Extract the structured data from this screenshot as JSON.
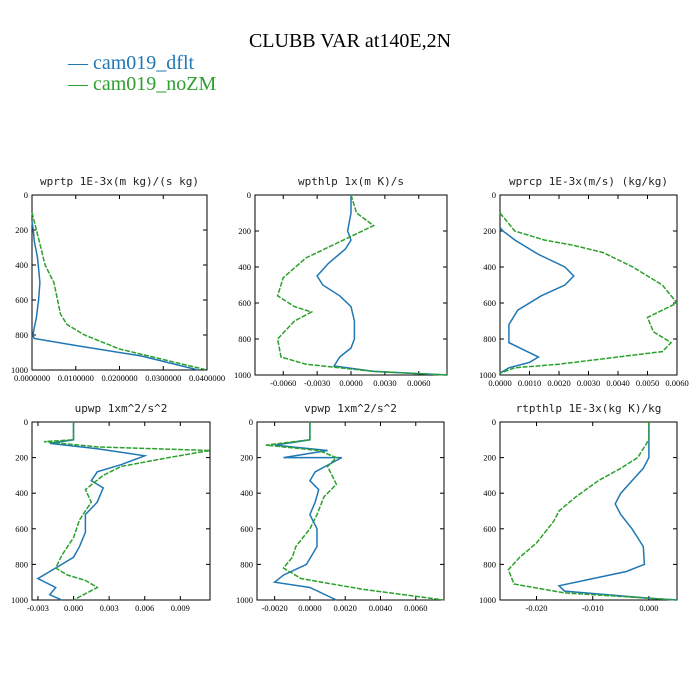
{
  "figure": {
    "title": "CLUBB VAR at140E,2N",
    "legend": [
      {
        "label": "— cam019_dflt",
        "color": "#1f77b4"
      },
      {
        "label": "— cam019_noZM",
        "color": "#2ca02c"
      }
    ]
  },
  "chart_data": [
    {
      "type": "line",
      "title": "wprtp  1E-3x(m kg)/(s kg)",
      "xlim": [
        0,
        0.04
      ],
      "ylim": [
        1000,
        0
      ],
      "xticks": [
        0,
        0.01,
        0.02,
        0.03,
        0.04
      ],
      "xtick_labels": [
        "0.0000000",
        "0.0100000",
        "0.0200000",
        "0.0300000",
        "0.0400000"
      ],
      "yticks": [
        0,
        200,
        400,
        600,
        800,
        1000
      ],
      "ytick_labels": [
        "0",
        "200",
        "400",
        "600",
        "800",
        "1000"
      ],
      "series": [
        {
          "name": "cam019_dflt",
          "color": "#1f77b4",
          "x": [
            0.0,
            0.0003,
            0.0005,
            0.0008,
            0.0012,
            0.0015,
            0.0018,
            0.0015,
            0.001,
            0.0005,
            0.0002,
            0.0005,
            0.01,
            0.025,
            0.038
          ],
          "y": [
            150,
            200,
            260,
            300,
            350,
            420,
            500,
            600,
            700,
            760,
            800,
            820,
            860,
            920,
            1000
          ]
        },
        {
          "name": "cam019_noZM",
          "color": "#2ca02c",
          "x": [
            0.0,
            0.001,
            0.002,
            0.003,
            0.004,
            0.005,
            0.0055,
            0.006,
            0.0065,
            0.008,
            0.012,
            0.02,
            0.03,
            0.04
          ],
          "y": [
            100,
            200,
            300,
            400,
            450,
            500,
            560,
            620,
            680,
            740,
            800,
            880,
            940,
            1000
          ]
        }
      ]
    },
    {
      "type": "line",
      "title": "wpthlp  1x(m K)/s",
      "xlim": [
        -0.0085,
        0.0085
      ],
      "ylim": [
        1000,
        0
      ],
      "xticks": [
        -0.006,
        -0.003,
        0.0,
        0.003,
        0.006
      ],
      "xtick_labels": [
        "-0.0060",
        "-0.0030",
        "0.0000",
        "0.0030",
        "0.0060"
      ],
      "yticks": [
        0,
        200,
        400,
        600,
        800,
        1000
      ],
      "ytick_labels": [
        "0",
        "200",
        "400",
        "600",
        "800",
        "1000"
      ],
      "series": [
        {
          "name": "cam019_dflt",
          "color": "#1f77b4",
          "x": [
            0.0,
            0.0,
            -0.0003,
            0.0,
            -0.0005,
            -0.002,
            -0.003,
            -0.0025,
            -0.001,
            0.0,
            0.0003,
            0.0003,
            0.0,
            -0.001,
            -0.0015,
            0.002,
            0.0085
          ],
          "y": [
            0,
            100,
            200,
            250,
            300,
            380,
            450,
            500,
            560,
            620,
            700,
            800,
            850,
            900,
            950,
            980,
            1000
          ]
        },
        {
          "name": "cam019_noZM",
          "color": "#2ca02c",
          "x": [
            0.0,
            0.0005,
            0.002,
            -0.001,
            -0.004,
            -0.006,
            -0.0065,
            -0.005,
            -0.0035,
            -0.005,
            -0.0065,
            -0.0062,
            -0.004,
            0.002,
            0.0085
          ],
          "y": [
            0,
            100,
            170,
            260,
            350,
            460,
            560,
            620,
            650,
            700,
            800,
            900,
            940,
            980,
            1000
          ]
        }
      ]
    },
    {
      "type": "line",
      "title": "wprcp  1E-3x(m/s) (kg/kg)",
      "xlim": [
        0,
        0.006
      ],
      "ylim": [
        1000,
        0
      ],
      "xticks": [
        0,
        0.001,
        0.002,
        0.003,
        0.004,
        0.005,
        0.006
      ],
      "xtick_labels": [
        "0.0000",
        "0.0010",
        "0.0020",
        "0.0030",
        "0.0040",
        "0.0050",
        "0.0060"
      ],
      "yticks": [
        0,
        200,
        400,
        600,
        800,
        1000
      ],
      "ytick_labels": [
        "0",
        "200",
        "400",
        "600",
        "800",
        "1000"
      ],
      "series": [
        {
          "name": "cam019_dflt",
          "color": "#1f77b4",
          "x": [
            0.0,
            0.0001,
            0.0005,
            0.0013,
            0.0022,
            0.0025,
            0.0022,
            0.0014,
            0.0006,
            0.0003,
            0.0003,
            0.0008,
            0.0013,
            0.001,
            0.0003,
            0.0
          ],
          "y": [
            180,
            200,
            250,
            330,
            400,
            450,
            500,
            560,
            640,
            720,
            820,
            860,
            900,
            930,
            960,
            990
          ]
        },
        {
          "name": "cam019_noZM",
          "color": "#2ca02c",
          "x": [
            0.0,
            0.0005,
            0.0015,
            0.0025,
            0.0035,
            0.0045,
            0.0055,
            0.006,
            0.0055,
            0.005,
            0.0052,
            0.0058,
            0.0055,
            0.004,
            0.002,
            0.0005,
            0.0
          ],
          "y": [
            100,
            200,
            250,
            280,
            320,
            400,
            500,
            600,
            640,
            680,
            760,
            820,
            870,
            900,
            940,
            960,
            990
          ]
        }
      ]
    },
    {
      "type": "line",
      "title": "upwp  1xm^2/s^2",
      "xlim": [
        -0.0035,
        0.0115
      ],
      "ylim": [
        1000,
        0
      ],
      "xticks": [
        -0.003,
        0.0,
        0.003,
        0.006,
        0.009
      ],
      "xtick_labels": [
        "-0.003",
        "0.000",
        "0.003",
        "0.006",
        "0.009"
      ],
      "yticks": [
        0,
        200,
        400,
        600,
        800,
        1000
      ],
      "ytick_labels": [
        "0",
        "200",
        "400",
        "600",
        "800",
        "1000"
      ],
      "series": [
        {
          "name": "cam019_dflt",
          "color": "#1f77b4",
          "x": [
            0.0,
            0.0,
            -0.002,
            0.002,
            0.006,
            0.004,
            0.002,
            0.0015,
            0.0025,
            0.002,
            0.001,
            0.001,
            0.0005,
            0.0,
            -0.0015,
            -0.003,
            -0.0015,
            -0.002,
            -0.001
          ],
          "y": [
            0,
            100,
            120,
            150,
            190,
            240,
            280,
            330,
            370,
            450,
            520,
            620,
            700,
            760,
            820,
            880,
            930,
            970,
            1000
          ]
        },
        {
          "name": "cam019_noZM",
          "color": "#2ca02c",
          "x": [
            0.0,
            0.0,
            -0.0025,
            0.002,
            0.0115,
            0.008,
            0.004,
            0.0025,
            0.001,
            0.0015,
            0.0005,
            0.0,
            -0.001,
            -0.0015,
            -0.0005,
            0.001,
            0.002,
            0.0
          ],
          "y": [
            0,
            100,
            110,
            140,
            160,
            200,
            250,
            300,
            380,
            450,
            550,
            650,
            750,
            820,
            860,
            890,
            930,
            1000
          ]
        }
      ]
    },
    {
      "type": "line",
      "title": "vpwp  1xm^2/s^2",
      "xlim": [
        -0.003,
        0.0076
      ],
      "ylim": [
        1000,
        0
      ],
      "xticks": [
        -0.002,
        0.0,
        0.002,
        0.004,
        0.006
      ],
      "xtick_labels": [
        "-0.0020",
        "0.0000",
        "0.0020",
        "0.0040",
        "0.0060"
      ],
      "yticks": [
        0,
        200,
        400,
        600,
        800,
        1000
      ],
      "ytick_labels": [
        "0",
        "200",
        "400",
        "600",
        "800",
        "1000"
      ],
      "series": [
        {
          "name": "cam019_dflt",
          "color": "#1f77b4",
          "x": [
            0.0,
            0.0,
            -0.002,
            0.001,
            -0.0015,
            0.0018,
            0.0003,
            0.0,
            0.0005,
            0.0003,
            0.0,
            0.0004,
            0.0004,
            -0.0002,
            -0.0015,
            -0.002,
            0.0,
            0.0015
          ],
          "y": [
            0,
            100,
            130,
            160,
            200,
            200,
            280,
            330,
            380,
            450,
            520,
            600,
            700,
            800,
            860,
            900,
            930,
            1000
          ]
        },
        {
          "name": "cam019_noZM",
          "color": "#2ca02c",
          "x": [
            0.0,
            0.0,
            -0.0025,
            0.0005,
            0.0015,
            0.001,
            0.0015,
            0.0008,
            0.0004,
            0.0,
            -0.0008,
            -0.001,
            -0.0015,
            -0.0005,
            0.003,
            0.0076
          ],
          "y": [
            0,
            100,
            130,
            160,
            200,
            250,
            350,
            420,
            520,
            600,
            700,
            760,
            820,
            880,
            940,
            1000
          ]
        }
      ]
    },
    {
      "type": "line",
      "title": "rtpthlp  1E-3x(kg K)/kg",
      "xlim": [
        -0.0265,
        0.005
      ],
      "ylim": [
        1000,
        0
      ],
      "xticks": [
        -0.02,
        -0.01,
        0.0
      ],
      "xtick_labels": [
        "-0.020",
        "-0.010",
        "0.000"
      ],
      "yticks": [
        0,
        200,
        400,
        600,
        800,
        1000
      ],
      "ytick_labels": [
        "0",
        "200",
        "400",
        "600",
        "800",
        "1000"
      ],
      "series": [
        {
          "name": "cam019_dflt",
          "color": "#1f77b4",
          "x": [
            0.0,
            0.0,
            0.0,
            -0.001,
            -0.003,
            -0.005,
            -0.006,
            -0.005,
            -0.003,
            -0.001,
            -0.0008,
            -0.004,
            -0.01,
            -0.016,
            -0.015,
            0.0,
            0.005
          ],
          "y": [
            0,
            100,
            200,
            260,
            330,
            400,
            460,
            520,
            600,
            700,
            800,
            840,
            880,
            920,
            950,
            990,
            1000
          ]
        },
        {
          "name": "cam019_noZM",
          "color": "#2ca02c",
          "x": [
            0.0,
            0.0,
            -0.002,
            -0.005,
            -0.009,
            -0.013,
            -0.016,
            -0.017,
            -0.02,
            -0.023,
            -0.025,
            -0.024,
            -0.015,
            0.0,
            0.005
          ],
          "y": [
            0,
            100,
            200,
            260,
            330,
            420,
            500,
            560,
            680,
            760,
            830,
            910,
            960,
            990,
            1000
          ]
        }
      ]
    }
  ]
}
